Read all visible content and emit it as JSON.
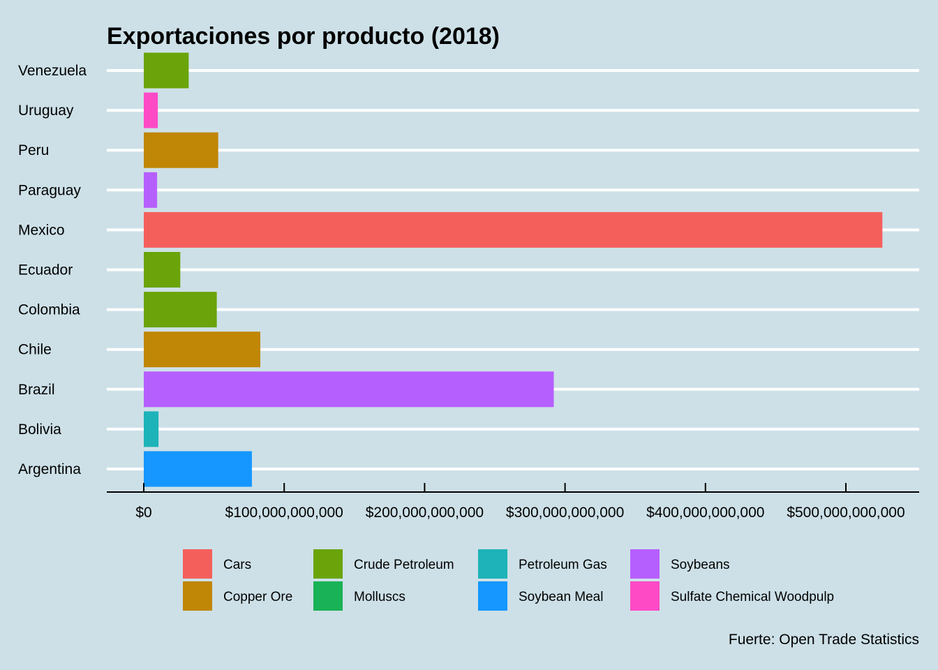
{
  "chart_data": {
    "type": "bar",
    "orientation": "horizontal",
    "title": "Exportaciones por producto (2018)",
    "caption": "Fuerte: Open Trade Statistics",
    "xlim": [
      0,
      550000000000
    ],
    "x_ticks": [
      0,
      100000000000,
      200000000000,
      300000000000,
      400000000000,
      500000000000
    ],
    "x_tick_labels": [
      "$0",
      "$100,000,000,000",
      "$200,000,000,000",
      "$300,000,000,000",
      "$400,000,000,000",
      "$500,000,000,000"
    ],
    "categories": [
      "Venezuela",
      "Uruguay",
      "Peru",
      "Paraguay",
      "Mexico",
      "Ecuador",
      "Colombia",
      "Chile",
      "Brazil",
      "Bolivia",
      "Argentina"
    ],
    "values": [
      32000000000,
      10000000000,
      53000000000,
      9500000000,
      526000000000,
      26000000000,
      52000000000,
      83000000000,
      292000000000,
      10500000000,
      77000000000
    ],
    "products": [
      "Crude Petroleum",
      "Sulfate Chemical Woodpulp",
      "Copper Ore",
      "Soybeans",
      "Cars",
      "Crude Petroleum",
      "Crude Petroleum",
      "Copper Ore",
      "Soybeans",
      "Petroleum Gas",
      "Soybean Meal"
    ],
    "legend": [
      {
        "name": "Cars",
        "color": "#f8766d"
      },
      {
        "name": "Copper Ore",
        "color": "#c49a00"
      },
      {
        "name": "Crude Petroleum",
        "color": "#53b400"
      },
      {
        "name": "Molluscs",
        "color": "#00c094"
      },
      {
        "name": "Petroleum Gas",
        "color": "#00b6eb"
      },
      {
        "name": "Soybean Meal",
        "color": "#06a4ff"
      },
      {
        "name": "Soybeans",
        "color": "#a58aff"
      },
      {
        "name": "Sulfate Chemical Woodpulp",
        "color": "#fb61d7"
      }
    ],
    "colors": {
      "Cars": "#f45f5c",
      "Copper Ore": "#c08606",
      "Crude Petroleum": "#6aa40a",
      "Molluscs": "#1ab257",
      "Petroleum Gas": "#1db3b8",
      "Soybean Meal": "#1597ff",
      "Soybeans": "#b65fff",
      "Sulfate Chemical Woodpulp": "#ff4ac6"
    },
    "grid": "horizontal major gridlines, white",
    "legend_position": "bottom",
    "background": "#cde0e7"
  }
}
